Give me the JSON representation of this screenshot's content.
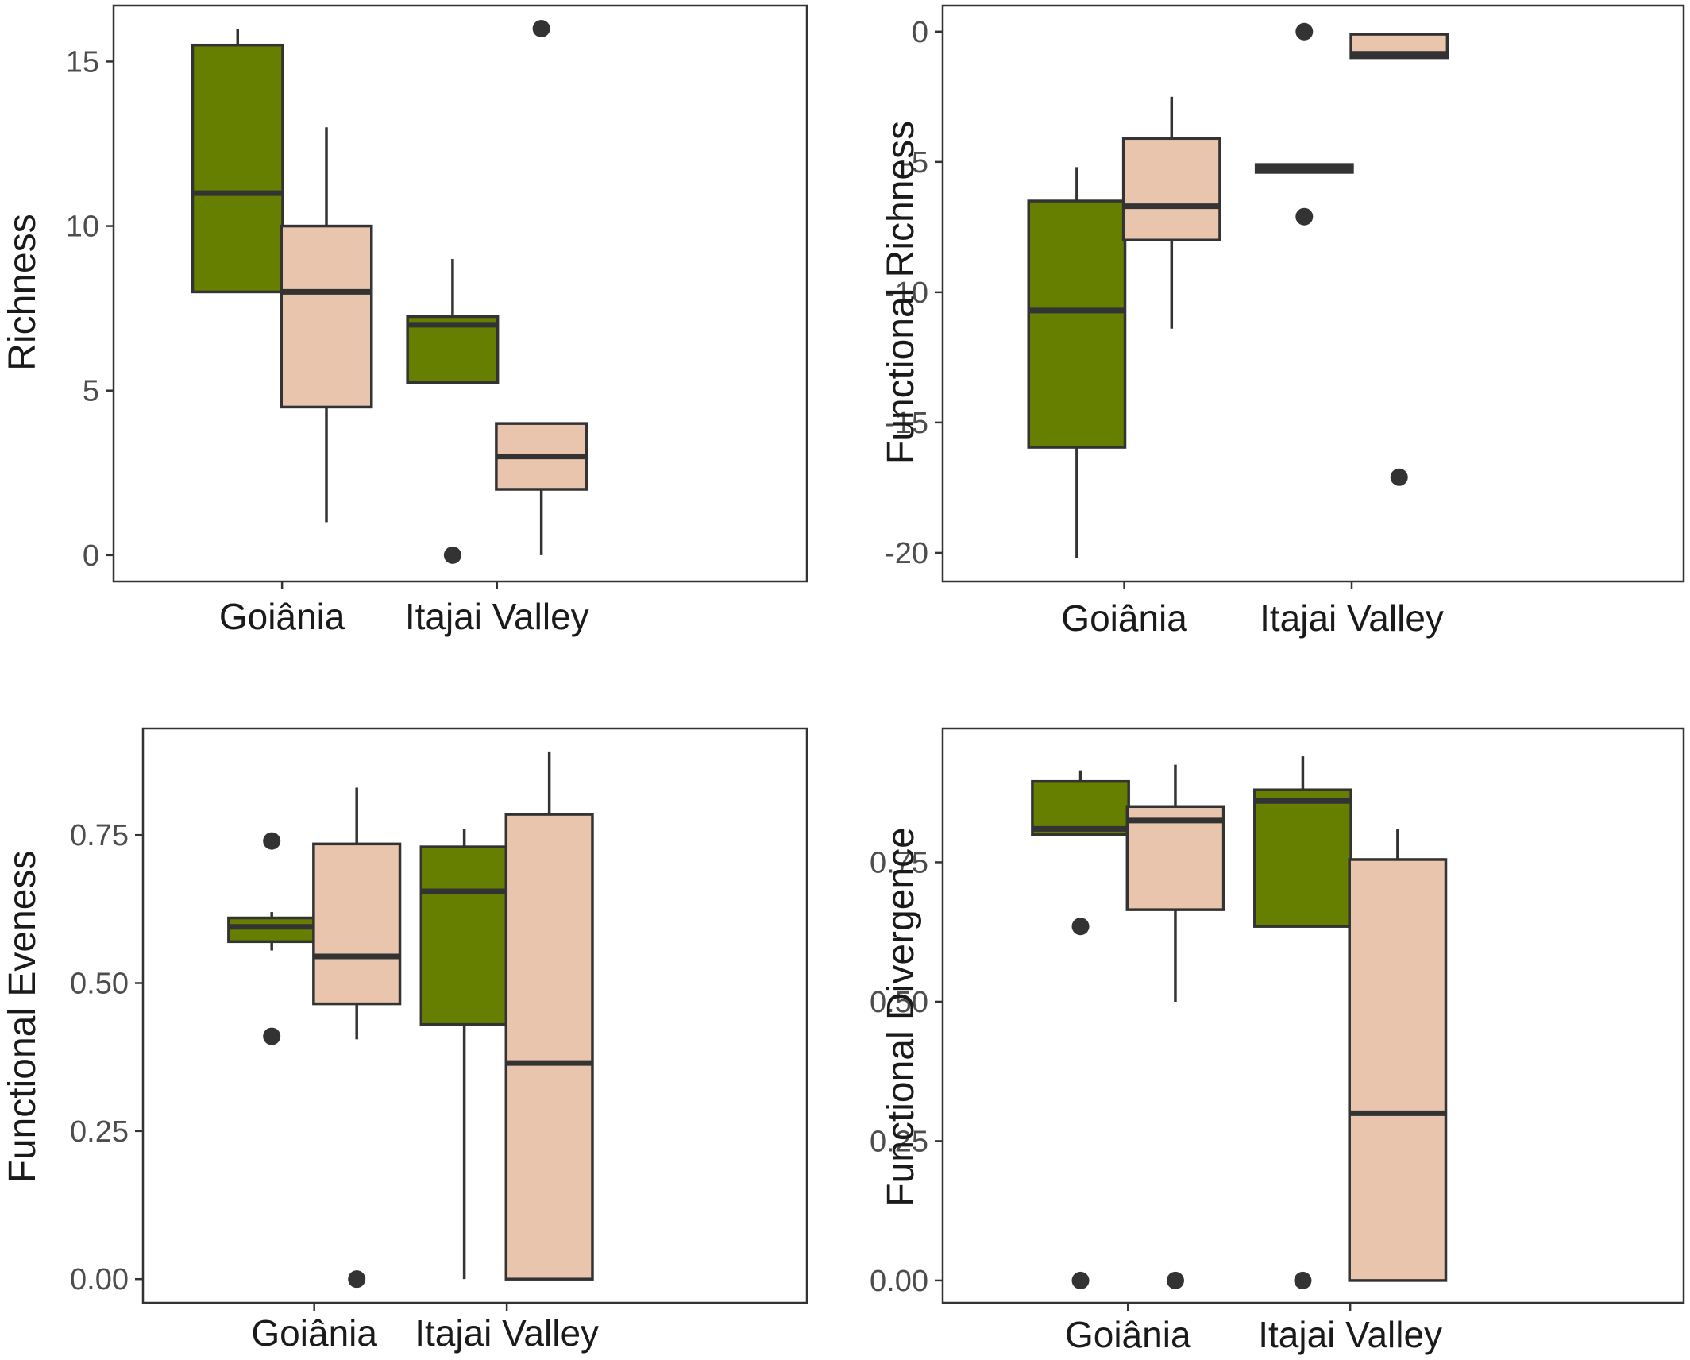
{
  "fills": {
    "green": "#667f00",
    "peach": "#eac5ad"
  },
  "stroke": "#333333",
  "chart_data": [
    {
      "type": "box",
      "ylabel": "Richness",
      "xlabel": "",
      "categories": [
        "Goiânia",
        "Itajai Valley"
      ],
      "ylim": [
        -0.8,
        16.7
      ],
      "yticks": [
        0,
        5,
        10,
        15
      ],
      "ytick_labels": [
        "0",
        "5",
        "10",
        "15"
      ],
      "boxes": [
        {
          "category": "Goiânia",
          "fill": "green",
          "whisker_low": 8,
          "q1": 8,
          "median": 11,
          "q3": 15.5,
          "whisker_high": 16,
          "outliers": []
        },
        {
          "category": "Goiânia",
          "fill": "peach",
          "whisker_low": 1,
          "q1": 4.5,
          "median": 8,
          "q3": 10,
          "whisker_high": 13,
          "outliers": []
        },
        {
          "category": "Itajai Valley",
          "fill": "green",
          "whisker_low": 5.25,
          "q1": 5.25,
          "median": 7,
          "q3": 7.25,
          "whisker_high": 9,
          "outliers": [
            0
          ]
        },
        {
          "category": "Itajai Valley",
          "fill": "peach",
          "whisker_low": 0,
          "q1": 2,
          "median": 3,
          "q3": 4,
          "whisker_high": 4,
          "outliers": [
            16
          ]
        }
      ]
    },
    {
      "type": "box",
      "ylabel": "Functional Richness",
      "xlabel": "",
      "categories": [
        "Goiânia",
        "Itajai Valley"
      ],
      "ylim": [
        -21.1,
        1
      ],
      "yticks": [
        0,
        -5,
        -10,
        -15,
        -20
      ],
      "ytick_labels": [
        "0",
        "-5",
        "-10",
        "-15",
        "-20"
      ],
      "boxes": [
        {
          "category": "Goiânia",
          "fill": "green",
          "whisker_low": -20.2,
          "q1": -15.95,
          "median": -10.7,
          "q3": -6.5,
          "whisker_high": -5.2,
          "outliers": []
        },
        {
          "category": "Goiânia",
          "fill": "peach",
          "whisker_low": -11.4,
          "q1": -8.0,
          "median": -6.7,
          "q3": -4.1,
          "whisker_high": -2.5,
          "outliers": []
        },
        {
          "category": "Itajai Valley",
          "fill": "green",
          "whisker_low": -5.4,
          "q1": -5.4,
          "median": -5.25,
          "q3": -5.1,
          "whisker_high": -5.1,
          "outliers": [
            0,
            -7.1
          ]
        },
        {
          "category": "Itajai Valley",
          "fill": "peach",
          "whisker_low": -1.0,
          "q1": -1.0,
          "median": -0.85,
          "q3": -0.1,
          "whisker_high": -0.1,
          "outliers": [
            -17.1
          ]
        }
      ]
    },
    {
      "type": "box",
      "ylabel": "Functional Eveness",
      "xlabel": "",
      "categories": [
        "Goiânia",
        "Itajai Valley"
      ],
      "ylim": [
        -0.04,
        0.93
      ],
      "yticks": [
        0,
        0.25,
        0.5,
        0.75
      ],
      "ytick_labels": [
        "0.00",
        "0.25",
        "0.50",
        "0.75"
      ],
      "boxes": [
        {
          "category": "Goiânia",
          "fill": "green",
          "whisker_low": 0.555,
          "q1": 0.57,
          "median": 0.595,
          "q3": 0.61,
          "whisker_high": 0.62,
          "outliers": [
            0.74,
            0.41
          ]
        },
        {
          "category": "Goiânia",
          "fill": "peach",
          "whisker_low": 0.405,
          "q1": 0.465,
          "median": 0.545,
          "q3": 0.735,
          "whisker_high": 0.83,
          "outliers": [
            0
          ]
        },
        {
          "category": "Itajai Valley",
          "fill": "green",
          "whisker_low": 0.0,
          "q1": 0.43,
          "median": 0.655,
          "q3": 0.73,
          "whisker_high": 0.76,
          "outliers": []
        },
        {
          "category": "Itajai Valley",
          "fill": "peach",
          "whisker_low": 0.0,
          "q1": 0.0,
          "median": 0.365,
          "q3": 0.785,
          "whisker_high": 0.89,
          "outliers": []
        }
      ]
    },
    {
      "type": "box",
      "ylabel": "Functional Divergence",
      "xlabel": "",
      "categories": [
        "Goiânia",
        "Itajai Valley"
      ],
      "ylim": [
        -0.04,
        0.99
      ],
      "yticks": [
        0,
        0.25,
        0.5,
        0.75
      ],
      "ytick_labels": [
        "0.00",
        "0.25",
        "0.50",
        "0.75"
      ],
      "boxes": [
        {
          "category": "Goiânia",
          "fill": "green",
          "whisker_low": 0.8,
          "q1": 0.8,
          "median": 0.81,
          "q3": 0.895,
          "whisker_high": 0.915,
          "outliers": [
            0.635,
            0
          ]
        },
        {
          "category": "Goiânia",
          "fill": "peach",
          "whisker_low": 0.5,
          "q1": 0.665,
          "median": 0.825,
          "q3": 0.85,
          "whisker_high": 0.925,
          "outliers": [
            0
          ]
        },
        {
          "category": "Itajai Valley",
          "fill": "green",
          "whisker_low": 0.635,
          "q1": 0.635,
          "median": 0.86,
          "q3": 0.88,
          "whisker_high": 0.94,
          "outliers": [
            0
          ]
        },
        {
          "category": "Itajai Valley",
          "fill": "peach",
          "whisker_low": 0.0,
          "q1": 0.0,
          "median": 0.3,
          "q3": 0.755,
          "whisker_high": 0.81,
          "outliers": []
        }
      ]
    }
  ]
}
